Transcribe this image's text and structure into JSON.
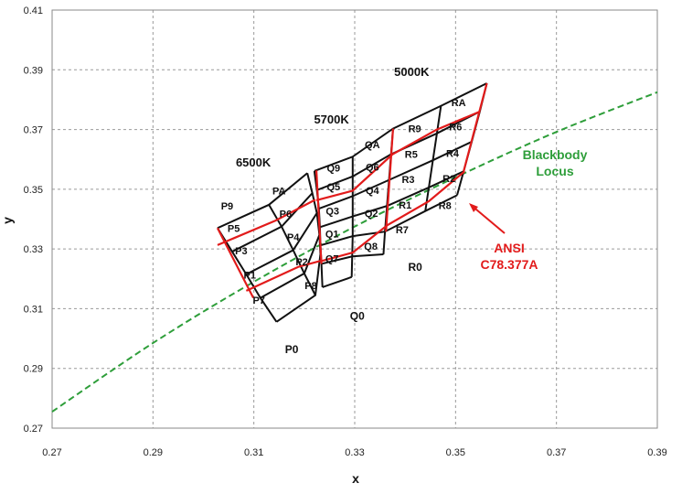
{
  "chart_data": {
    "type": "scatter",
    "xlabel": "x",
    "ylabel": "y",
    "xlim": [
      0.27,
      0.39
    ],
    "ylim": [
      0.27,
      0.41
    ],
    "xticks": [
      "0.27",
      "0.29",
      "0.31",
      "0.33",
      "0.35",
      "0.37",
      "0.39"
    ],
    "yticks": [
      "0.27",
      "0.29",
      "0.31",
      "0.33",
      "0.35",
      "0.37",
      "0.39",
      "0.41"
    ],
    "grid": true,
    "blackbody_locus": {
      "label_line1": "Blackbody",
      "label_line2": "Locus",
      "color": "#2e9e3a",
      "x": [
        0.27,
        0.29,
        0.31,
        0.33,
        0.35,
        0.37,
        0.39
      ],
      "y": [
        0.2755,
        0.2985,
        0.319,
        0.3375,
        0.354,
        0.3692,
        0.3825
      ]
    },
    "ansi_annotation": {
      "line1": "ANSI",
      "line2": "C78.377A",
      "color": "#e21b1b"
    },
    "bin_grid": {
      "black_color": "#111111",
      "red_color": "#e21b1b",
      "columns": [
        [
          [
            0.3028,
            0.337
          ],
          [
            0.3057,
            0.3291
          ],
          [
            0.3085,
            0.3215
          ],
          [
            0.3113,
            0.3136
          ],
          [
            0.3145,
            0.3056
          ]
        ],
        [
          [
            0.313,
            0.3448
          ],
          [
            0.3155,
            0.3375
          ],
          [
            0.3178,
            0.3296
          ],
          [
            0.32,
            0.3218
          ],
          [
            0.3222,
            0.3145
          ]
        ],
        [
          [
            0.3206,
            0.3554
          ],
          [
            0.3216,
            0.3487
          ],
          [
            0.3225,
            0.342
          ],
          [
            0.323,
            0.3347
          ],
          [
            0.3232,
            0.3283
          ]
        ],
        [
          [
            0.322,
            0.3561
          ],
          [
            0.3225,
            0.3497
          ],
          [
            0.3229,
            0.3435
          ],
          [
            0.3231,
            0.3373
          ],
          [
            0.3232,
            0.3312
          ],
          [
            0.3234,
            0.325
          ],
          [
            0.3236,
            0.3172
          ]
        ],
        [
          [
            0.3296,
            0.3609
          ],
          [
            0.3296,
            0.3543
          ],
          [
            0.3296,
            0.3477
          ],
          [
            0.3296,
            0.3409
          ],
          [
            0.3296,
            0.3343
          ],
          [
            0.3295,
            0.3275
          ],
          [
            0.3294,
            0.3206
          ]
        ],
        [
          [
            0.3376,
            0.3703
          ],
          [
            0.3372,
            0.3617
          ],
          [
            0.3368,
            0.3531
          ],
          [
            0.3364,
            0.3444
          ],
          [
            0.336,
            0.3358
          ],
          [
            0.3357,
            0.3282
          ]
        ],
        [
          [
            0.3471,
            0.3779
          ],
          [
            0.3463,
            0.3687
          ],
          [
            0.3455,
            0.3597
          ],
          [
            0.3447,
            0.3506
          ],
          [
            0.344,
            0.3427
          ]
        ],
        [
          [
            0.3562,
            0.3855
          ],
          [
            0.3548,
            0.376
          ],
          [
            0.3532,
            0.3659
          ],
          [
            0.3516,
            0.356
          ],
          [
            0.3503,
            0.348
          ]
        ]
      ],
      "red_rows": [
        [
          [
            0.3028,
            0.3313
          ],
          [
            0.3143,
            0.3395
          ],
          [
            0.3222,
            0.3465
          ]
        ],
        [
          [
            0.3085,
            0.316
          ],
          [
            0.3188,
            0.324
          ],
          [
            0.3232,
            0.326
          ]
        ],
        [
          [
            0.3224,
            0.3463
          ],
          [
            0.3296,
            0.3495
          ],
          [
            0.3375,
            0.3617
          ],
          [
            0.3462,
            0.3699
          ],
          [
            0.3548,
            0.376
          ]
        ],
        [
          [
            0.3235,
            0.326
          ],
          [
            0.3296,
            0.3288
          ],
          [
            0.3365,
            0.338
          ],
          [
            0.3447,
            0.346
          ],
          [
            0.3518,
            0.356
          ]
        ]
      ],
      "red_cols": [
        [
          [
            0.3028,
            0.337
          ],
          [
            0.3099,
            0.3136
          ]
        ],
        [
          [
            0.3224,
            0.3563
          ],
          [
            0.3234,
            0.325
          ]
        ],
        [
          [
            0.3376,
            0.3703
          ],
          [
            0.3362,
            0.3358
          ]
        ],
        [
          [
            0.3562,
            0.3855
          ],
          [
            0.3516,
            0.356
          ]
        ]
      ]
    },
    "bin_labels": [
      {
        "text": "P9",
        "x": 0.3047,
        "y": 0.3444
      },
      {
        "text": "PA",
        "x": 0.315,
        "y": 0.3495
      },
      {
        "text": "P5",
        "x": 0.306,
        "y": 0.337
      },
      {
        "text": "P6",
        "x": 0.3163,
        "y": 0.3418
      },
      {
        "text": "P3",
        "x": 0.3075,
        "y": 0.3295
      },
      {
        "text": "P4",
        "x": 0.3178,
        "y": 0.334
      },
      {
        "text": "P1",
        "x": 0.3092,
        "y": 0.3213
      },
      {
        "text": "P2",
        "x": 0.3195,
        "y": 0.3258
      },
      {
        "text": "P7",
        "x": 0.311,
        "y": 0.3129
      },
      {
        "text": "P8",
        "x": 0.3213,
        "y": 0.3178
      },
      {
        "text": "Q9",
        "x": 0.3258,
        "y": 0.3572
      },
      {
        "text": "QA",
        "x": 0.3335,
        "y": 0.3649
      },
      {
        "text": "Q5",
        "x": 0.3258,
        "y": 0.3508
      },
      {
        "text": "Q6",
        "x": 0.3335,
        "y": 0.3574
      },
      {
        "text": "Q3",
        "x": 0.3256,
        "y": 0.3428
      },
      {
        "text": "Q4",
        "x": 0.3335,
        "y": 0.3496
      },
      {
        "text": "Q1",
        "x": 0.3255,
        "y": 0.3351
      },
      {
        "text": "Q2",
        "x": 0.3333,
        "y": 0.342
      },
      {
        "text": "Q7",
        "x": 0.3255,
        "y": 0.3268
      },
      {
        "text": "Q8",
        "x": 0.3332,
        "y": 0.3309
      },
      {
        "text": "R9",
        "x": 0.3419,
        "y": 0.3703
      },
      {
        "text": "RA",
        "x": 0.3506,
        "y": 0.379
      },
      {
        "text": "R5",
        "x": 0.3412,
        "y": 0.3618
      },
      {
        "text": "R6",
        "x": 0.35,
        "y": 0.371
      },
      {
        "text": "R3",
        "x": 0.3406,
        "y": 0.3534
      },
      {
        "text": "R4",
        "x": 0.3494,
        "y": 0.362
      },
      {
        "text": "R1",
        "x": 0.34,
        "y": 0.3447
      },
      {
        "text": "R2",
        "x": 0.3487,
        "y": 0.3536
      },
      {
        "text": "R7",
        "x": 0.3394,
        "y": 0.3365
      },
      {
        "text": "R8",
        "x": 0.3479,
        "y": 0.3446
      }
    ],
    "cct_labels": [
      {
        "text": "6500K",
        "x": 0.3099,
        "y": 0.3589
      },
      {
        "text": "5700K",
        "x": 0.3254,
        "y": 0.3733
      },
      {
        "text": "5000K",
        "x": 0.3413,
        "y": 0.3891
      }
    ],
    "zone_labels": [
      {
        "text": "P0",
        "x": 0.3175,
        "y": 0.2964
      },
      {
        "text": "Q0",
        "x": 0.3305,
        "y": 0.3076
      },
      {
        "text": "R0",
        "x": 0.342,
        "y": 0.3239
      }
    ]
  }
}
